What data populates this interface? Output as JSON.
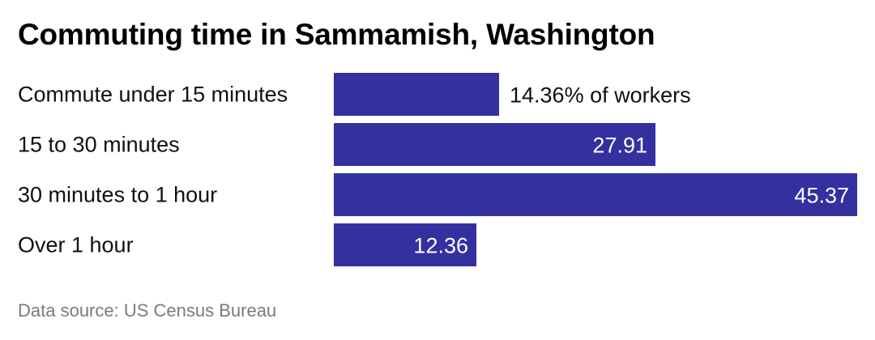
{
  "chart_data": {
    "type": "bar",
    "orientation": "horizontal",
    "title": "Commuting time in Sammamish, Washington",
    "categories": [
      "Commute under 15 minutes",
      "15 to 30 minutes",
      "30 minutes to 1 hour",
      "Over 1 hour"
    ],
    "values": [
      14.36,
      27.91,
      45.37,
      12.36
    ],
    "value_labels": [
      "14.36% of workers",
      "27.91",
      "45.37",
      "12.36"
    ],
    "xlim": [
      0,
      45.37
    ],
    "grid": false,
    "legend": "none",
    "bar_color": "#3430a0",
    "source": "Data source: US Census Bureau"
  }
}
